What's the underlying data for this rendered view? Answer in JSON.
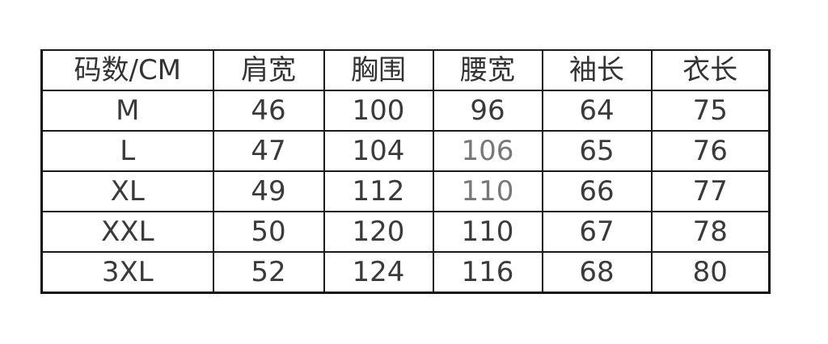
{
  "headers": [
    "码数/CM",
    "肩宽",
    "胸围",
    "腰宽",
    "袖长",
    "衣长"
  ],
  "rows": [
    [
      "M",
      "46",
      "100",
      "96",
      "64",
      "75"
    ],
    [
      "L",
      "47",
      "104",
      "106",
      "65",
      "76"
    ],
    [
      "XL",
      "49",
      "112",
      "110",
      "66",
      "77"
    ],
    [
      "XXL",
      "50",
      "120",
      "110",
      "67",
      "78"
    ],
    [
      "3XL",
      "52",
      "124",
      "116",
      "68",
      "80"
    ]
  ]
}
